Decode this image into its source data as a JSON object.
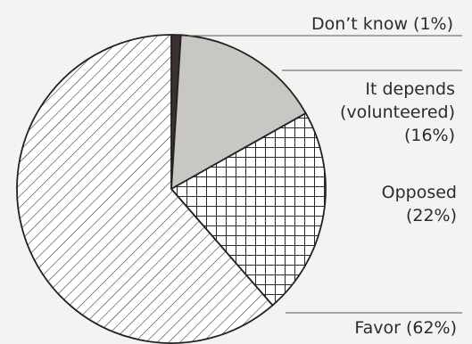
{
  "chart_data": {
    "type": "pie",
    "title": "",
    "slices": [
      {
        "key": "dont_know",
        "label_lines": [
          "Don’t know (1%)"
        ],
        "value": 1,
        "pattern": "solid-dark",
        "color": "#3b3133"
      },
      {
        "key": "depends",
        "label_lines": [
          "It depends",
          "(volunteered)",
          "(16%)"
        ],
        "value": 16,
        "pattern": "solid-light",
        "color": "#c9c7c3"
      },
      {
        "key": "opposed",
        "label_lines": [
          "Opposed",
          "(22%)"
        ],
        "value": 22,
        "pattern": "crosshatch",
        "color": "#ffffff"
      },
      {
        "key": "favor",
        "label_lines": [
          "Favor (62%)"
        ],
        "value": 62,
        "pattern": "diagonal",
        "color": "#ffffff"
      }
    ]
  }
}
